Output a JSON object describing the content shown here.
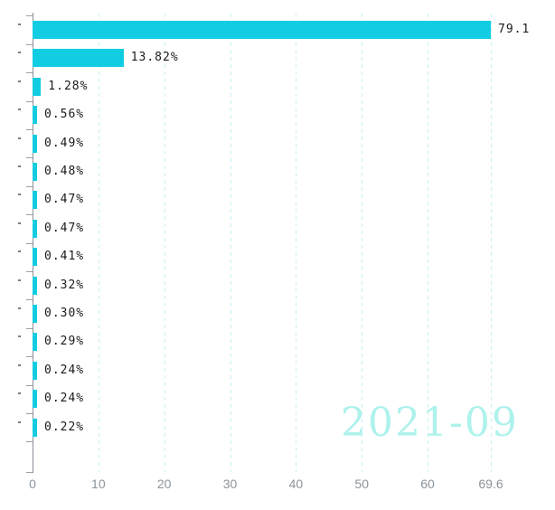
{
  "watermark": {
    "text": "2021-09",
    "color": "#aef2ec"
  },
  "chart_data": {
    "type": "bar",
    "orientation": "horizontal",
    "title": "",
    "xlabel": "",
    "ylabel": "",
    "categories": [
      "",
      "",
      "",
      "",
      "",
      "",
      "",
      "",
      "",
      "",
      "",
      "",
      "",
      "",
      ""
    ],
    "values": [
      79.1,
      13.82,
      1.28,
      0.56,
      0.49,
      0.48,
      0.47,
      0.47,
      0.41,
      0.32,
      0.3,
      0.29,
      0.24,
      0.24,
      0.22
    ],
    "value_labels": [
      "79.1",
      "13.82%",
      "1.28%",
      "0.56%",
      "0.49%",
      "0.48%",
      "0.47%",
      "0.47%",
      "0.41%",
      "0.32%",
      "0.30%",
      "0.29%",
      "0.24%",
      "0.24%",
      "0.22%"
    ],
    "xlim": [
      0,
      69.6
    ],
    "x_ticks": [
      {
        "value": 0,
        "label": "0"
      },
      {
        "value": 10,
        "label": "10"
      },
      {
        "value": 20,
        "label": "20"
      },
      {
        "value": 30,
        "label": "30"
      },
      {
        "value": 40,
        "label": "40"
      },
      {
        "value": 50,
        "label": "50"
      },
      {
        "value": 60,
        "label": "60"
      },
      {
        "value": 69.6,
        "label": "69.6"
      }
    ],
    "grid": "vertical-dashed",
    "legend": "none",
    "colors": {
      "bar": "#12cde2",
      "gridline": "#c8f0f4",
      "axis": "#8a9198",
      "tick_label": "#8b949b",
      "value_label": "#1a1a1a"
    }
  }
}
